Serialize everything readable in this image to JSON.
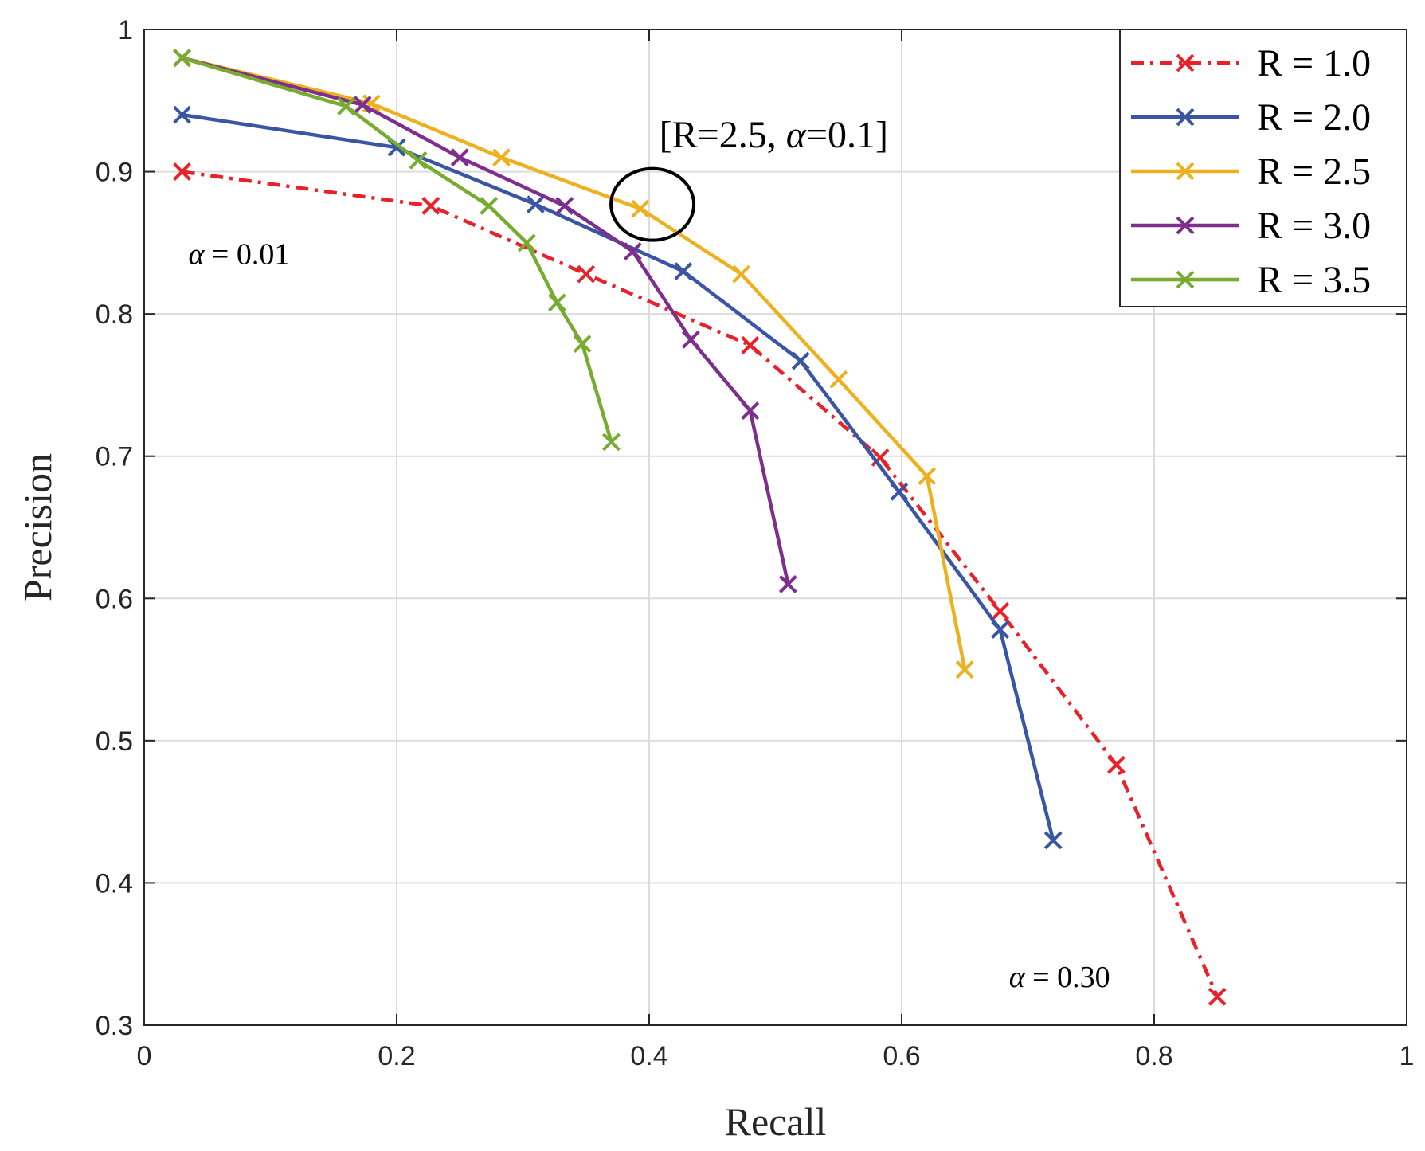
{
  "chart_data": {
    "type": "line",
    "title": "",
    "xlabel": "Recall",
    "ylabel": "Precision",
    "xlim": [
      0,
      1
    ],
    "ylim": [
      0.3,
      1
    ],
    "grid": true,
    "x_ticks": [
      0,
      0.2,
      0.4,
      0.6,
      0.8,
      1
    ],
    "x_tick_labels": [
      "0",
      "0.2",
      "0.4",
      "0.6",
      "0.8",
      "1"
    ],
    "y_ticks": [
      0.3,
      0.4,
      0.5,
      0.6,
      0.7,
      0.8,
      0.9,
      1
    ],
    "y_tick_labels": [
      "0.3",
      "0.4",
      "0.5",
      "0.6",
      "0.7",
      "0.8",
      "0.9",
      "1"
    ],
    "legend_position": "top-right",
    "marker": "x",
    "series": [
      {
        "name": "R = 1.0",
        "color": "#E8222B",
        "line_style": "dash-dot",
        "x": [
          0.03,
          0.227,
          0.35,
          0.48,
          0.583,
          0.678,
          0.77,
          0.85
        ],
        "y": [
          0.9,
          0.876,
          0.828,
          0.778,
          0.699,
          0.591,
          0.483,
          0.32
        ]
      },
      {
        "name": "R = 2.0",
        "color": "#3A55A4",
        "line_style": "solid",
        "x": [
          0.03,
          0.2,
          0.31,
          0.427,
          0.52,
          0.598,
          0.678,
          0.72
        ],
        "y": [
          0.94,
          0.917,
          0.877,
          0.83,
          0.767,
          0.675,
          0.578,
          0.43
        ]
      },
      {
        "name": "R = 2.5",
        "color": "#EDB120",
        "line_style": "solid",
        "x": [
          0.03,
          0.18,
          0.283,
          0.393,
          0.473,
          0.55,
          0.62,
          0.65
        ],
        "y": [
          0.98,
          0.948,
          0.91,
          0.874,
          0.828,
          0.754,
          0.686,
          0.55
        ]
      },
      {
        "name": "R = 3.0",
        "color": "#7E2F8E",
        "line_style": "solid",
        "x": [
          0.03,
          0.173,
          0.25,
          0.333,
          0.387,
          0.433,
          0.48,
          0.51
        ],
        "y": [
          0.98,
          0.947,
          0.91,
          0.876,
          0.844,
          0.782,
          0.732,
          0.61
        ]
      },
      {
        "name": "R = 3.5",
        "color": "#77AC30",
        "line_style": "solid",
        "x": [
          0.03,
          0.16,
          0.217,
          0.273,
          0.303,
          0.327,
          0.347,
          0.37
        ],
        "y": [
          0.98,
          0.946,
          0.908,
          0.876,
          0.85,
          0.808,
          0.779,
          0.71
        ]
      }
    ],
    "annotations": [
      {
        "text_prefix": "α",
        "text_suffix": " = 0.01",
        "x": 0.035,
        "y": 0.835,
        "size": "small"
      },
      {
        "text_prefix": "α",
        "text_suffix": " = 0.30",
        "x": 0.685,
        "y": 0.327,
        "size": "small"
      },
      {
        "text_prefix": "[R=2.5, ",
        "text_italic": "α",
        "text_suffix": "=0.1]",
        "x": 0.408,
        "y": 0.917,
        "size": "big"
      }
    ],
    "highlight_circle": {
      "x": 0.395,
      "y": 0.877,
      "label": "circled point R=2.5"
    }
  }
}
